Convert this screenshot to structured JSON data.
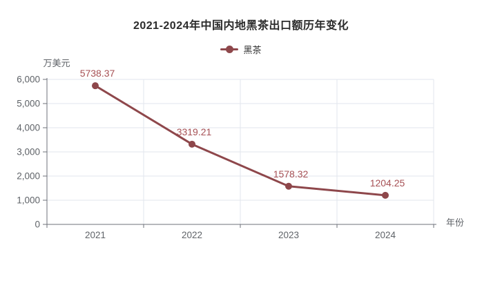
{
  "chart": {
    "title": "2021-2024年中国内地黑茶出口额历年变化"
  },
  "chart_data": {
    "type": "line",
    "title": "2021-2024年中国内地黑茶出口额历年变化",
    "categories": [
      "2021",
      "2022",
      "2023",
      "2024"
    ],
    "series": [
      {
        "name": "黑茶",
        "values": [
          5738.37,
          3319.21,
          1578.32,
          1204.25
        ],
        "labels": [
          "5738.37",
          "3319.21",
          "1578.32",
          "1204.25"
        ],
        "color": "#8E474B"
      }
    ],
    "xlabel": "年份",
    "ylabel": "万美元",
    "ylim": [
      0,
      6000
    ],
    "ytick_step": 1000,
    "ytick_labels": [
      "0",
      "1,000",
      "2,000",
      "3,000",
      "4,000",
      "5,000",
      "6,000"
    ],
    "grid": true,
    "legend_position": "top-center"
  },
  "colors": {
    "title": "#2b2b2b",
    "axis_label": "#5f6368",
    "axis_line": "#6E7079",
    "gridline": "#e2e5ec",
    "series": "#8E474B",
    "data_label": "#A65054",
    "background": "#ffffff"
  }
}
